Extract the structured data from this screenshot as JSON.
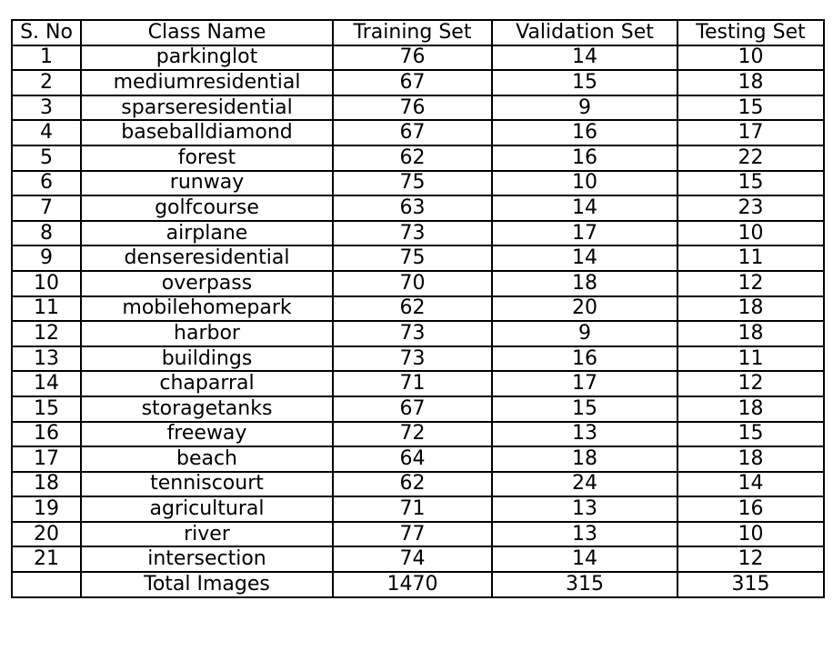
{
  "table": {
    "headers": [
      "S. No",
      "Class Name",
      "Training Set",
      "Validation Set",
      "Testing Set"
    ],
    "rows": [
      [
        "1",
        "parkinglot",
        "76",
        "14",
        "10"
      ],
      [
        "2",
        "mediumresidential",
        "67",
        "15",
        "18"
      ],
      [
        "3",
        "sparseresidential",
        "76",
        "9",
        "15"
      ],
      [
        "4",
        "baseballdiamond",
        "67",
        "16",
        "17"
      ],
      [
        "5",
        "forest",
        "62",
        "16",
        "22"
      ],
      [
        "6",
        "runway",
        "75",
        "10",
        "15"
      ],
      [
        "7",
        "golfcourse",
        "63",
        "14",
        "23"
      ],
      [
        "8",
        "airplane",
        "73",
        "17",
        "10"
      ],
      [
        "9",
        "denseresidential",
        "75",
        "14",
        "11"
      ],
      [
        "10",
        "overpass",
        "70",
        "18",
        "12"
      ],
      [
        "11",
        "mobilehomepark",
        "62",
        "20",
        "18"
      ],
      [
        "12",
        "harbor",
        "73",
        "9",
        "18"
      ],
      [
        "13",
        "buildings",
        "73",
        "16",
        "11"
      ],
      [
        "14",
        "chaparral",
        "71",
        "17",
        "12"
      ],
      [
        "15",
        "storagetanks",
        "67",
        "15",
        "18"
      ],
      [
        "16",
        "freeway",
        "72",
        "13",
        "15"
      ],
      [
        "17",
        "beach",
        "64",
        "18",
        "18"
      ],
      [
        "18",
        "tenniscourt",
        "62",
        "24",
        "14"
      ],
      [
        "19",
        "agricultural",
        "71",
        "13",
        "16"
      ],
      [
        "20",
        "river",
        "77",
        "13",
        "10"
      ],
      [
        "21",
        "intersection",
        "74",
        "14",
        "12"
      ]
    ],
    "total": [
      "",
      "Total Images",
      "1470",
      "315",
      "315"
    ]
  }
}
